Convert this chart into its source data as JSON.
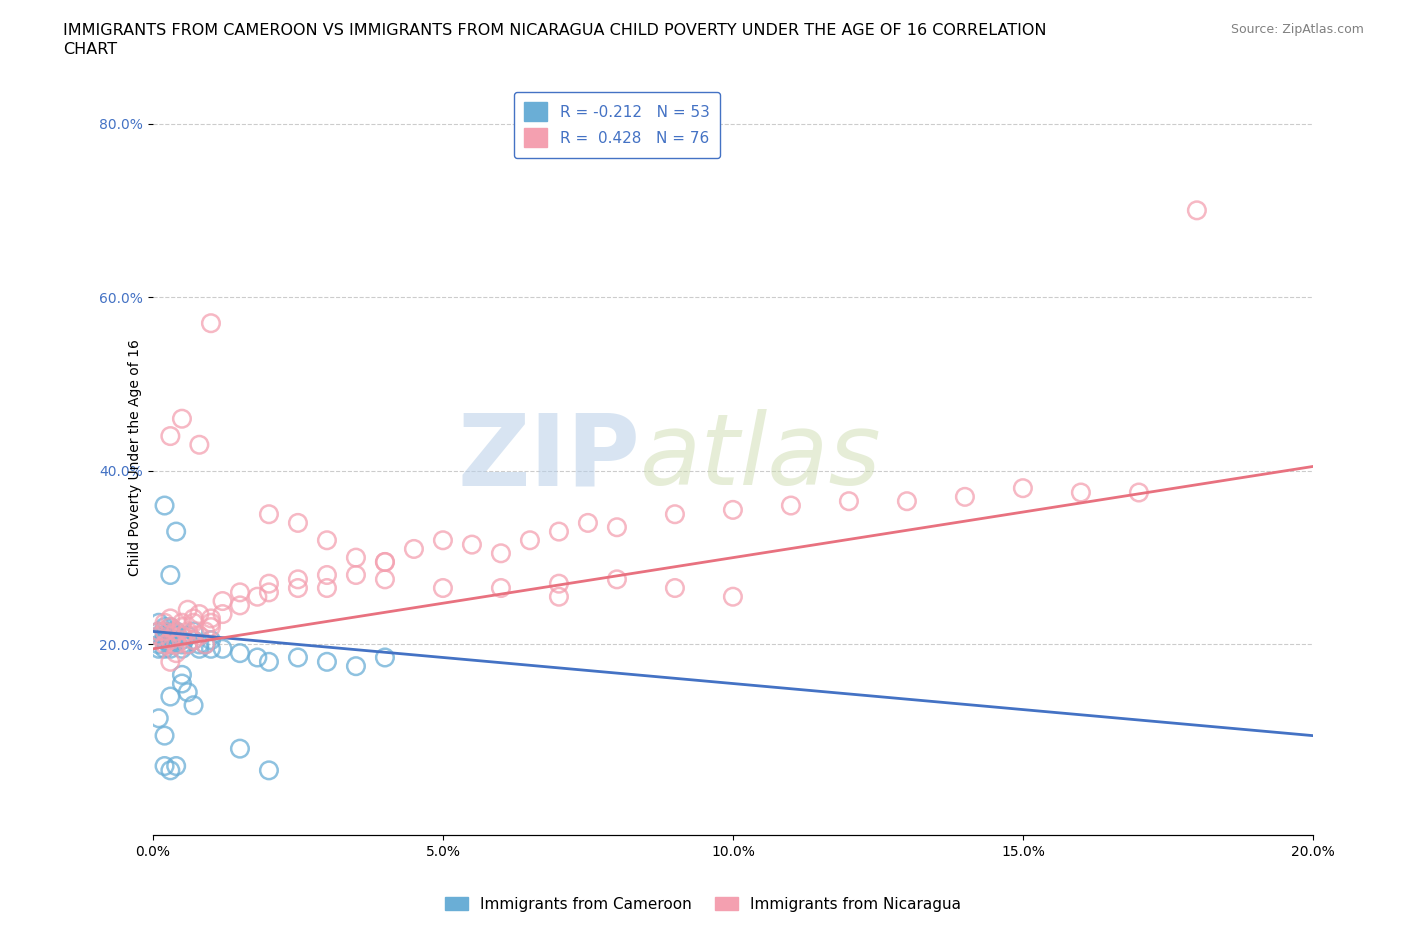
{
  "title_line1": "IMMIGRANTS FROM CAMEROON VS IMMIGRANTS FROM NICARAGUA CHILD POVERTY UNDER THE AGE OF 16 CORRELATION",
  "title_line2": "CHART",
  "source": "Source: ZipAtlas.com",
  "xlabel": "",
  "ylabel": "Child Poverty Under the Age of 16",
  "xlim": [
    0.0,
    0.2
  ],
  "ylim": [
    -0.02,
    0.85
  ],
  "xticks": [
    0.0,
    0.05,
    0.1,
    0.15,
    0.2
  ],
  "yticks": [
    0.2,
    0.4,
    0.6,
    0.8
  ],
  "ytick_labels": [
    "20.0%",
    "40.0%",
    "60.0%",
    "80.0%"
  ],
  "xtick_labels": [
    "0.0%",
    "5.0%",
    "10.0%",
    "15.0%",
    "20.0%"
  ],
  "cameroon_color": "#6aaed6",
  "cameroon_edge_color": "#6aaed6",
  "nicaragua_color": "#f4a0b0",
  "nicaragua_edge_color": "#f4a0b0",
  "cameroon_line_color": "#4472c4",
  "nicaragua_line_color": "#e8717f",
  "cameroon_R": -0.212,
  "cameroon_N": 53,
  "nicaragua_R": 0.428,
  "nicaragua_N": 76,
  "legend_label_cameroon": "Immigrants from Cameroon",
  "legend_label_nicaragua": "Immigrants from Nicaragua",
  "watermark_zip": "ZIP",
  "watermark_atlas": "atlas",
  "background_color": "#ffffff",
  "grid_color": "#cccccc",
  "title_fontsize": 11.5,
  "axis_label_fontsize": 10,
  "tick_fontsize": 10,
  "legend_fontsize": 11,
  "cameroon_scatter": [
    [
      0.001,
      0.21
    ],
    [
      0.001,
      0.215
    ],
    [
      0.001,
      0.2
    ],
    [
      0.001,
      0.195
    ],
    [
      0.001,
      0.225
    ],
    [
      0.002,
      0.205
    ],
    [
      0.002,
      0.22
    ],
    [
      0.002,
      0.215
    ],
    [
      0.002,
      0.195
    ],
    [
      0.002,
      0.21
    ],
    [
      0.003,
      0.215
    ],
    [
      0.003,
      0.22
    ],
    [
      0.003,
      0.205
    ],
    [
      0.003,
      0.2
    ],
    [
      0.003,
      0.195
    ],
    [
      0.004,
      0.21
    ],
    [
      0.004,
      0.205
    ],
    [
      0.004,
      0.215
    ],
    [
      0.005,
      0.205
    ],
    [
      0.005,
      0.195
    ],
    [
      0.005,
      0.2
    ],
    [
      0.006,
      0.2
    ],
    [
      0.006,
      0.21
    ],
    [
      0.007,
      0.215
    ],
    [
      0.007,
      0.205
    ],
    [
      0.008,
      0.2
    ],
    [
      0.008,
      0.195
    ],
    [
      0.009,
      0.2
    ],
    [
      0.01,
      0.195
    ],
    [
      0.01,
      0.205
    ],
    [
      0.012,
      0.195
    ],
    [
      0.015,
      0.19
    ],
    [
      0.018,
      0.185
    ],
    [
      0.02,
      0.18
    ],
    [
      0.025,
      0.185
    ],
    [
      0.03,
      0.18
    ],
    [
      0.035,
      0.175
    ],
    [
      0.04,
      0.185
    ],
    [
      0.002,
      0.36
    ],
    [
      0.003,
      0.28
    ],
    [
      0.004,
      0.33
    ],
    [
      0.003,
      0.14
    ],
    [
      0.005,
      0.155
    ],
    [
      0.005,
      0.165
    ],
    [
      0.006,
      0.145
    ],
    [
      0.007,
      0.13
    ],
    [
      0.001,
      0.115
    ],
    [
      0.002,
      0.095
    ],
    [
      0.002,
      0.06
    ],
    [
      0.003,
      0.055
    ],
    [
      0.004,
      0.06
    ],
    [
      0.015,
      0.08
    ],
    [
      0.02,
      0.055
    ]
  ],
  "nicaragua_scatter": [
    [
      0.001,
      0.21
    ],
    [
      0.001,
      0.215
    ],
    [
      0.002,
      0.2
    ],
    [
      0.002,
      0.215
    ],
    [
      0.002,
      0.225
    ],
    [
      0.003,
      0.205
    ],
    [
      0.003,
      0.22
    ],
    [
      0.003,
      0.23
    ],
    [
      0.003,
      0.18
    ],
    [
      0.004,
      0.2
    ],
    [
      0.004,
      0.215
    ],
    [
      0.004,
      0.19
    ],
    [
      0.005,
      0.225
    ],
    [
      0.005,
      0.21
    ],
    [
      0.005,
      0.22
    ],
    [
      0.006,
      0.2
    ],
    [
      0.006,
      0.215
    ],
    [
      0.006,
      0.24
    ],
    [
      0.007,
      0.205
    ],
    [
      0.007,
      0.225
    ],
    [
      0.007,
      0.23
    ],
    [
      0.008,
      0.235
    ],
    [
      0.008,
      0.21
    ],
    [
      0.009,
      0.215
    ],
    [
      0.009,
      0.2
    ],
    [
      0.01,
      0.22
    ],
    [
      0.01,
      0.23
    ],
    [
      0.01,
      0.225
    ],
    [
      0.012,
      0.25
    ],
    [
      0.012,
      0.235
    ],
    [
      0.015,
      0.26
    ],
    [
      0.015,
      0.245
    ],
    [
      0.018,
      0.255
    ],
    [
      0.02,
      0.27
    ],
    [
      0.02,
      0.26
    ],
    [
      0.025,
      0.275
    ],
    [
      0.025,
      0.265
    ],
    [
      0.03,
      0.28
    ],
    [
      0.03,
      0.265
    ],
    [
      0.035,
      0.3
    ],
    [
      0.035,
      0.28
    ],
    [
      0.04,
      0.295
    ],
    [
      0.04,
      0.275
    ],
    [
      0.045,
      0.31
    ],
    [
      0.05,
      0.32
    ],
    [
      0.055,
      0.315
    ],
    [
      0.06,
      0.305
    ],
    [
      0.065,
      0.32
    ],
    [
      0.07,
      0.33
    ],
    [
      0.075,
      0.34
    ],
    [
      0.08,
      0.335
    ],
    [
      0.09,
      0.35
    ],
    [
      0.1,
      0.355
    ],
    [
      0.11,
      0.36
    ],
    [
      0.12,
      0.365
    ],
    [
      0.13,
      0.365
    ],
    [
      0.14,
      0.37
    ],
    [
      0.15,
      0.38
    ],
    [
      0.16,
      0.375
    ],
    [
      0.17,
      0.375
    ],
    [
      0.18,
      0.7
    ],
    [
      0.005,
      0.46
    ],
    [
      0.008,
      0.43
    ],
    [
      0.01,
      0.57
    ],
    [
      0.003,
      0.44
    ],
    [
      0.02,
      0.35
    ],
    [
      0.025,
      0.34
    ],
    [
      0.03,
      0.32
    ],
    [
      0.04,
      0.295
    ],
    [
      0.05,
      0.265
    ],
    [
      0.06,
      0.265
    ],
    [
      0.07,
      0.27
    ],
    [
      0.08,
      0.275
    ],
    [
      0.09,
      0.265
    ],
    [
      0.1,
      0.255
    ],
    [
      0.07,
      0.255
    ]
  ]
}
